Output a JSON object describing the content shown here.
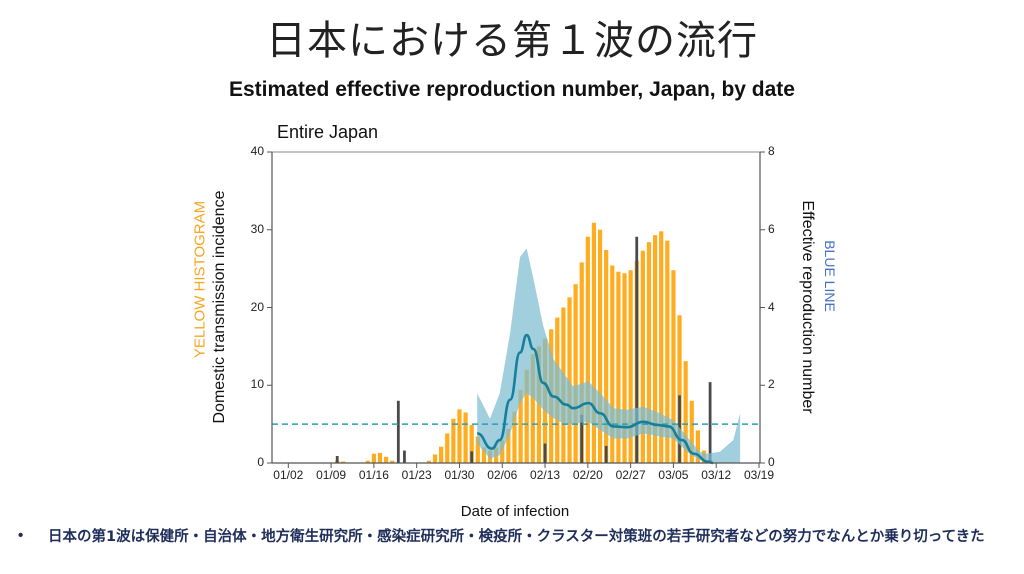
{
  "slide_title": "日本における第１波の流行",
  "chart_heading": "Estimated effective reproduction number, Japan, by date",
  "bullet": "•",
  "bullet_text": "日本の第1波は保健所・自治体・地方衛生研究所・感染症研究所・検疫所・クラスター対策班の若手研究者などの努力でなんとか乗り切ってきた",
  "colors": {
    "yellow": "#FFAD1F",
    "dark": "#4a4a4a",
    "band": "#7dbcd0",
    "line": "#16809c",
    "dash": "#2a9fb8",
    "yellow_label": "#F5A623",
    "blue_label": "#4472C4"
  },
  "chart_data": {
    "type": "bar+line",
    "title": "Entire Japan",
    "xlabel": "Date of infection",
    "ylabel_left": "Domestic transmission incidence",
    "ylabel_left_note": "YELLOW HISTOGRAM",
    "ylabel_right": "Effective reproduction number",
    "ylabel_right_note": "BLUE LINE",
    "ylim_left": [
      0,
      40
    ],
    "ylim_right": [
      0,
      8
    ],
    "yticks_left": [
      "40",
      "30",
      "20",
      "10",
      "0"
    ],
    "yticks_right": [
      "8",
      "6",
      "4",
      "2",
      "0"
    ],
    "xticks": [
      "01/02",
      "01/09",
      "01/16",
      "01/23",
      "01/30",
      "02/06",
      "02/13",
      "02/20",
      "02/27",
      "03/05",
      "03/12",
      "03/19"
    ],
    "threshold_rt": 1,
    "domestic_incidence": [
      [
        "01/10",
        0.3
      ],
      [
        "01/11",
        0.2
      ],
      [
        "01/15",
        0.3
      ],
      [
        "01/16",
        1.2
      ],
      [
        "01/17",
        1.3
      ],
      [
        "01/18",
        0.8
      ],
      [
        "01/19",
        0.3
      ],
      [
        "01/25",
        0.3
      ],
      [
        "01/26",
        1.1
      ],
      [
        "01/27",
        2.1
      ],
      [
        "01/28",
        3.8
      ],
      [
        "01/29",
        5.7
      ],
      [
        "01/30",
        6.9
      ],
      [
        "01/31",
        6.5
      ],
      [
        "02/01",
        4.9
      ],
      [
        "02/02",
        3.4
      ],
      [
        "02/03",
        2.0
      ],
      [
        "02/04",
        1.6
      ],
      [
        "02/05",
        2.0
      ],
      [
        "02/06",
        2.9
      ],
      [
        "02/07",
        4.4
      ],
      [
        "02/08",
        6.6
      ],
      [
        "02/09",
        9.4
      ],
      [
        "02/10",
        12
      ],
      [
        "02/11",
        14
      ],
      [
        "02/12",
        15
      ],
      [
        "02/13",
        16
      ],
      [
        "02/14",
        17.2
      ],
      [
        "02/15",
        18.7
      ],
      [
        "02/16",
        20
      ],
      [
        "02/17",
        21.3
      ],
      [
        "02/18",
        23
      ],
      [
        "02/19",
        25.8
      ],
      [
        "02/20",
        29.1
      ],
      [
        "02/21",
        30.9
      ],
      [
        "02/22",
        30
      ],
      [
        "02/23",
        27.4
      ],
      [
        "02/24",
        25.4
      ],
      [
        "02/25",
        24.6
      ],
      [
        "02/26",
        24.4
      ],
      [
        "02/27",
        24.8
      ],
      [
        "02/28",
        26
      ],
      [
        "02/29",
        27.3
      ],
      [
        "03/01",
        28.4
      ],
      [
        "03/02",
        29.3
      ],
      [
        "03/03",
        29.8
      ],
      [
        "03/04",
        28.6
      ],
      [
        "03/05",
        24.8
      ],
      [
        "03/06",
        19
      ],
      [
        "03/07",
        13.1
      ],
      [
        "03/08",
        8
      ],
      [
        "03/09",
        4.2
      ],
      [
        "03/10",
        1.6
      ],
      [
        "03/11",
        0.5
      ]
    ],
    "dark_bars": [
      [
        "01/10",
        0.9
      ],
      [
        "01/20",
        8
      ],
      [
        "01/21",
        1.6
      ],
      [
        "02/01",
        1.5
      ],
      [
        "02/13",
        2.5
      ],
      [
        "02/19",
        6.2
      ],
      [
        "02/23",
        2.2
      ],
      [
        "02/28",
        29.1
      ],
      [
        "03/06",
        8.7
      ],
      [
        "03/11",
        10.4
      ]
    ],
    "rt_days_since_0102": [
      30.9,
      33.3,
      34.6,
      36.3,
      37.9,
      39.0,
      40.1,
      41.7,
      43.4,
      45.5,
      46.6,
      49.1,
      51.0,
      53.2,
      55.4,
      58.1,
      60.3,
      62.2,
      64.4,
      66.3,
      68.7,
      69.5
    ],
    "rt": [
      0.76,
      0.37,
      0.59,
      1.63,
      2.84,
      3.29,
      2.93,
      2.06,
      1.71,
      1.5,
      1.41,
      1.54,
      1.28,
      0.94,
      0.92,
      1.06,
      0.98,
      0.94,
      0.59,
      0.24,
      0.03,
      0.0
    ],
    "rt_upper": [
      [
        30.9,
        1.79
      ],
      [
        33.0,
        1.14
      ],
      [
        34.6,
        1.8
      ],
      [
        36.3,
        3.36
      ],
      [
        37.9,
        5.3
      ],
      [
        39.0,
        5.52
      ],
      [
        40.1,
        4.74
      ],
      [
        41.7,
        3.53
      ],
      [
        43.4,
        2.67
      ],
      [
        46.6,
        1.97
      ],
      [
        49.1,
        2.1
      ],
      [
        51.0,
        1.8
      ],
      [
        53.2,
        1.41
      ],
      [
        55.4,
        1.37
      ],
      [
        58.1,
        1.45
      ],
      [
        60.8,
        1.28
      ],
      [
        63.0,
        1.1
      ],
      [
        65.2,
        0.68
      ],
      [
        67.3,
        0.29
      ],
      [
        68.4,
        0.24
      ],
      [
        70.6,
        0.29
      ],
      [
        72.8,
        0.59
      ],
      [
        73.9,
        1.28
      ]
    ],
    "rt_lower": [
      [
        30.9,
        0.5
      ],
      [
        33.0,
        0.11
      ],
      [
        34.6,
        0.2
      ],
      [
        36.3,
        0.76
      ],
      [
        37.9,
        1.54
      ],
      [
        39.0,
        1.8
      ],
      [
        40.1,
        1.67
      ],
      [
        41.7,
        1.37
      ],
      [
        43.4,
        1.15
      ],
      [
        45.5,
        0.98
      ],
      [
        49.1,
        1.06
      ],
      [
        51.0,
        0.85
      ],
      [
        53.2,
        0.63
      ],
      [
        55.4,
        0.63
      ],
      [
        58.1,
        0.76
      ],
      [
        60.8,
        0.68
      ],
      [
        63.0,
        0.63
      ],
      [
        65.2,
        0.29
      ],
      [
        67.3,
        0.07
      ],
      [
        69.5,
        0.0
      ],
      [
        73.9,
        0.0
      ]
    ]
  }
}
